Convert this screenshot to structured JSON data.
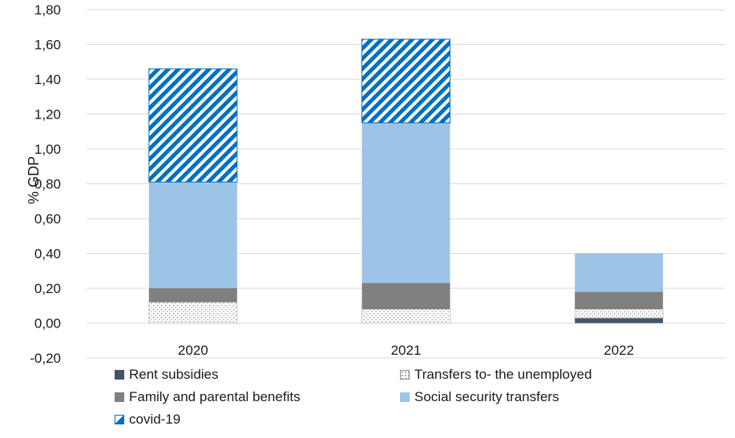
{
  "chart_data": {
    "type": "bar",
    "stacked": true,
    "categories": [
      "2020",
      "2021",
      "2022"
    ],
    "ylabel": "% GDP",
    "ylim": [
      -0.2,
      1.8
    ],
    "yticks": [
      "-0,20",
      "0,00",
      "0,20",
      "0,40",
      "0,60",
      "0,80",
      "1,00",
      "1,20",
      "1,40",
      "1,60",
      "1,80"
    ],
    "grid": true,
    "legend_position": "bottom",
    "series": [
      {
        "name": "Rent subsidies",
        "values": [
          0.0,
          0.0,
          0.03
        ],
        "color": "#44546a",
        "pattern": "solid"
      },
      {
        "name": "Transfers to- the unemployed",
        "values": [
          0.12,
          0.08,
          0.05
        ],
        "color": "#ffffff",
        "pattern": "dots"
      },
      {
        "name": "Family and parental benefits",
        "values": [
          0.08,
          0.15,
          0.1
        ],
        "color": "#808080",
        "pattern": "solid"
      },
      {
        "name": "Social security transfers",
        "values": [
          0.61,
          0.92,
          0.22
        ],
        "color": "#9dc3e6",
        "pattern": "solid"
      },
      {
        "name": "covid-19",
        "values": [
          0.65,
          0.48,
          0.0
        ],
        "color": "#0070c0",
        "pattern": "stripes"
      }
    ]
  }
}
